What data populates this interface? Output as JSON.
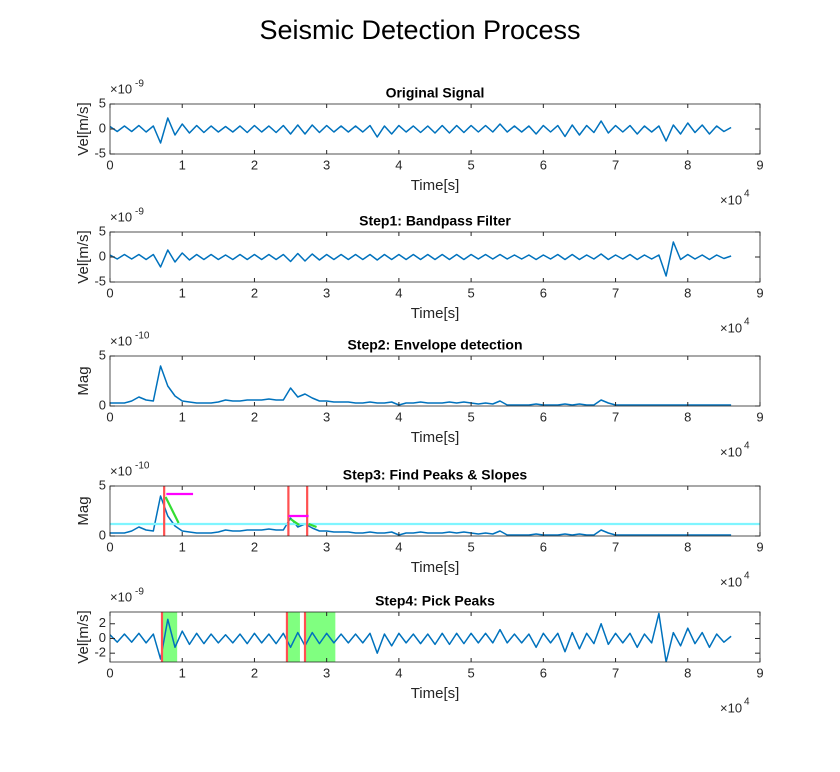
{
  "title": "Seismic Detection Process",
  "chart_data": [
    {
      "type": "line",
      "title": "Original Signal",
      "xlabel": "Time[s]",
      "ylabel": "Vel[m/s]",
      "x_exponent": {
        "base": "×10",
        "power": "4"
      },
      "y_exponent": {
        "base": "×10",
        "power": "-9"
      },
      "xlim": [
        0,
        9
      ],
      "xticks": [
        0,
        1,
        2,
        3,
        4,
        5,
        6,
        7,
        8,
        9
      ],
      "ylim": [
        -5,
        5
      ],
      "yticks": [
        -5,
        0,
        5
      ],
      "x": [
        0,
        0.1,
        0.2,
        0.3,
        0.4,
        0.5,
        0.6,
        0.7,
        0.8,
        0.9,
        1,
        1.1,
        1.2,
        1.3,
        1.4,
        1.5,
        1.6,
        1.7,
        1.8,
        1.9,
        2,
        2.1,
        2.2,
        2.3,
        2.4,
        2.5,
        2.6,
        2.7,
        2.8,
        2.9,
        3,
        3.1,
        3.2,
        3.3,
        3.4,
        3.5,
        3.6,
        3.7,
        3.8,
        3.9,
        4,
        4.1,
        4.2,
        4.3,
        4.4,
        4.5,
        4.6,
        4.7,
        4.8,
        4.9,
        5,
        5.1,
        5.2,
        5.3,
        5.4,
        5.5,
        5.6,
        5.7,
        5.8,
        5.9,
        6,
        6.1,
        6.2,
        6.3,
        6.4,
        6.5,
        6.6,
        6.7,
        6.8,
        6.9,
        7,
        7.1,
        7.2,
        7.3,
        7.4,
        7.5,
        7.6,
        7.7,
        7.8,
        7.9,
        8,
        8.1,
        8.2,
        8.3,
        8.4,
        8.5,
        8.6
      ],
      "series": [
        {
          "color": "#0072bd",
          "values": [
            0.5,
            -0.5,
            0.6,
            -0.5,
            0.7,
            -0.6,
            0.6,
            -2.8,
            2.2,
            -1.2,
            1.0,
            -0.8,
            0.7,
            -0.7,
            0.6,
            -0.6,
            0.5,
            -0.6,
            0.6,
            -0.7,
            0.7,
            -0.6,
            0.6,
            -0.7,
            0.7,
            -1.0,
            0.8,
            -1.0,
            0.8,
            -0.7,
            0.7,
            -0.6,
            0.6,
            -0.6,
            0.6,
            -0.6,
            0.7,
            -1.6,
            0.6,
            -1.0,
            0.7,
            -0.6,
            0.6,
            -0.7,
            0.6,
            -0.8,
            0.7,
            -0.8,
            0.7,
            -0.7,
            0.7,
            -0.6,
            0.7,
            -0.6,
            1.0,
            -0.6,
            0.6,
            -0.6,
            0.6,
            -1.0,
            0.7,
            -0.6,
            0.7,
            -1.5,
            0.8,
            -1.2,
            0.7,
            -0.7,
            1.6,
            -0.8,
            0.7,
            -0.6,
            0.7,
            -1.0,
            0.6,
            -0.6,
            0.6,
            -2.4,
            0.8,
            -1.0,
            1.2,
            -0.7,
            0.8,
            -1.0,
            0.6,
            -0.5,
            0.3
          ]
        }
      ]
    },
    {
      "type": "line",
      "title": "Step1: Bandpass Filter",
      "xlabel": "Time[s]",
      "ylabel": "Vel[m/s]",
      "x_exponent": {
        "base": "×10",
        "power": "4"
      },
      "y_exponent": {
        "base": "×10",
        "power": "-9"
      },
      "xlim": [
        0,
        9
      ],
      "xticks": [
        0,
        1,
        2,
        3,
        4,
        5,
        6,
        7,
        8,
        9
      ],
      "ylim": [
        -5,
        5
      ],
      "yticks": [
        -5,
        0,
        5
      ],
      "x": [
        0,
        0.1,
        0.2,
        0.3,
        0.4,
        0.5,
        0.6,
        0.7,
        0.8,
        0.9,
        1,
        1.1,
        1.2,
        1.3,
        1.4,
        1.5,
        1.6,
        1.7,
        1.8,
        1.9,
        2,
        2.1,
        2.2,
        2.3,
        2.4,
        2.5,
        2.6,
        2.7,
        2.8,
        2.9,
        3,
        3.1,
        3.2,
        3.3,
        3.4,
        3.5,
        3.6,
        3.7,
        3.8,
        3.9,
        4,
        4.1,
        4.2,
        4.3,
        4.4,
        4.5,
        4.6,
        4.7,
        4.8,
        4.9,
        5,
        5.1,
        5.2,
        5.3,
        5.4,
        5.5,
        5.6,
        5.7,
        5.8,
        5.9,
        6,
        6.1,
        6.2,
        6.3,
        6.4,
        6.5,
        6.6,
        6.7,
        6.8,
        6.9,
        7,
        7.1,
        7.2,
        7.3,
        7.4,
        7.5,
        7.6,
        7.7,
        7.8,
        7.9,
        8,
        8.1,
        8.2,
        8.3,
        8.4,
        8.5,
        8.6
      ],
      "series": [
        {
          "color": "#0072bd",
          "values": [
            0.4,
            -0.4,
            0.5,
            -0.4,
            0.5,
            -0.5,
            0.5,
            -2.0,
            1.4,
            -1.0,
            0.8,
            -0.6,
            0.5,
            -0.5,
            0.5,
            -0.5,
            0.4,
            -0.5,
            0.5,
            -0.5,
            0.5,
            -0.5,
            0.5,
            -0.5,
            0.5,
            -0.9,
            0.7,
            -0.8,
            0.6,
            -0.6,
            0.5,
            -0.5,
            0.5,
            -0.5,
            0.5,
            -0.5,
            0.5,
            -0.6,
            0.5,
            -0.5,
            0.5,
            -0.5,
            0.5,
            -0.5,
            0.5,
            -0.5,
            0.5,
            -0.5,
            0.5,
            -0.5,
            0.5,
            -0.4,
            0.5,
            -0.4,
            0.5,
            -0.4,
            0.4,
            -0.4,
            0.4,
            -0.5,
            0.4,
            -0.4,
            0.5,
            -0.5,
            0.5,
            -0.5,
            0.4,
            -0.4,
            0.6,
            -0.5,
            0.4,
            -0.4,
            0.5,
            -0.5,
            0.4,
            -0.4,
            0.4,
            -3.8,
            3.0,
            -0.5,
            0.5,
            -0.4,
            0.4,
            -0.5,
            0.4,
            -0.3,
            0.2
          ]
        }
      ]
    },
    {
      "type": "line",
      "title": "Step2: Envelope detection",
      "xlabel": "Time[s]",
      "ylabel": "Mag",
      "x_exponent": {
        "base": "×10",
        "power": "4"
      },
      "y_exponent": {
        "base": "×10",
        "power": "-10"
      },
      "xlim": [
        0,
        9
      ],
      "xticks": [
        0,
        1,
        2,
        3,
        4,
        5,
        6,
        7,
        8,
        9
      ],
      "ylim": [
        0,
        5
      ],
      "yticks": [
        0,
        5
      ],
      "x": [
        0,
        0.1,
        0.2,
        0.3,
        0.4,
        0.5,
        0.6,
        0.7,
        0.8,
        0.9,
        1,
        1.1,
        1.2,
        1.3,
        1.4,
        1.5,
        1.6,
        1.7,
        1.8,
        1.9,
        2,
        2.1,
        2.2,
        2.3,
        2.4,
        2.5,
        2.6,
        2.7,
        2.8,
        2.9,
        3,
        3.1,
        3.2,
        3.3,
        3.4,
        3.5,
        3.6,
        3.7,
        3.8,
        3.9,
        4,
        4.1,
        4.2,
        4.3,
        4.4,
        4.5,
        4.6,
        4.7,
        4.8,
        4.9,
        5,
        5.1,
        5.2,
        5.3,
        5.4,
        5.5,
        5.6,
        5.7,
        5.8,
        5.9,
        6,
        6.1,
        6.2,
        6.3,
        6.4,
        6.5,
        6.6,
        6.7,
        6.8,
        6.9,
        7,
        7.1,
        7.2,
        7.3,
        7.4,
        7.5,
        7.6,
        7.7,
        7.8,
        7.9,
        8,
        8.1,
        8.2,
        8.3,
        8.4,
        8.5,
        8.6
      ],
      "series": [
        {
          "color": "#0072bd",
          "values": [
            0.3,
            0.3,
            0.3,
            0.5,
            0.9,
            0.6,
            0.5,
            4.0,
            2.0,
            1.0,
            0.5,
            0.4,
            0.3,
            0.3,
            0.3,
            0.4,
            0.6,
            0.5,
            0.5,
            0.6,
            0.6,
            0.6,
            0.7,
            0.6,
            0.6,
            1.8,
            0.9,
            1.2,
            0.8,
            0.5,
            0.5,
            0.4,
            0.4,
            0.4,
            0.3,
            0.3,
            0.4,
            0.3,
            0.3,
            0.4,
            0.1,
            0.3,
            0.3,
            0.4,
            0.3,
            0.3,
            0.3,
            0.4,
            0.3,
            0.4,
            0.3,
            0.2,
            0.3,
            0.2,
            0.5,
            0.1,
            0.1,
            0.1,
            0.1,
            0.2,
            0.1,
            0.1,
            0.1,
            0.2,
            0.1,
            0.2,
            0.1,
            0.1,
            0.6,
            0.3,
            0.1,
            0.1,
            0.1,
            0.1,
            0.1,
            0.1,
            0.1,
            0.1,
            0.1,
            0.1,
            0.1,
            0.1,
            0.1,
            0.1,
            0.1,
            0.1,
            0.1
          ]
        }
      ]
    },
    {
      "type": "line",
      "title": "Step3: Find Peaks & Slopes",
      "xlabel": "Time[s]",
      "ylabel": "Mag",
      "x_exponent": {
        "base": "×10",
        "power": "4"
      },
      "y_exponent": {
        "base": "×10",
        "power": "-10"
      },
      "xlim": [
        0,
        9
      ],
      "xticks": [
        0,
        1,
        2,
        3,
        4,
        5,
        6,
        7,
        8,
        9
      ],
      "ylim": [
        0,
        5
      ],
      "yticks": [
        0,
        5
      ],
      "series": [
        {
          "color": "#0072bd",
          "x": [
            0,
            0.1,
            0.2,
            0.3,
            0.4,
            0.5,
            0.6,
            0.7,
            0.8,
            0.9,
            1,
            1.1,
            1.2,
            1.3,
            1.4,
            1.5,
            1.6,
            1.7,
            1.8,
            1.9,
            2,
            2.1,
            2.2,
            2.3,
            2.4,
            2.5,
            2.6,
            2.7,
            2.8,
            2.9,
            3,
            3.1,
            3.2,
            3.3,
            3.4,
            3.5,
            3.6,
            3.7,
            3.8,
            3.9,
            4,
            4.1,
            4.2,
            4.3,
            4.4,
            4.5,
            4.6,
            4.7,
            4.8,
            4.9,
            5,
            5.1,
            5.2,
            5.3,
            5.4,
            5.5,
            5.6,
            5.7,
            5.8,
            5.9,
            6,
            6.1,
            6.2,
            6.3,
            6.4,
            6.5,
            6.6,
            6.7,
            6.8,
            6.9,
            7,
            7.1,
            7.2,
            7.3,
            7.4,
            7.5,
            7.6,
            7.7,
            7.8,
            7.9,
            8,
            8.1,
            8.2,
            8.3,
            8.4,
            8.5,
            8.6
          ],
          "values": [
            0.3,
            0.3,
            0.3,
            0.5,
            0.9,
            0.6,
            0.5,
            4.0,
            2.0,
            1.0,
            0.5,
            0.4,
            0.3,
            0.3,
            0.3,
            0.4,
            0.6,
            0.5,
            0.5,
            0.6,
            0.6,
            0.6,
            0.7,
            0.6,
            0.6,
            1.8,
            0.9,
            1.2,
            0.8,
            0.5,
            0.5,
            0.4,
            0.4,
            0.4,
            0.3,
            0.3,
            0.4,
            0.3,
            0.3,
            0.4,
            0.1,
            0.3,
            0.3,
            0.4,
            0.3,
            0.3,
            0.3,
            0.4,
            0.3,
            0.4,
            0.3,
            0.2,
            0.3,
            0.2,
            0.5,
            0.1,
            0.1,
            0.1,
            0.1,
            0.2,
            0.1,
            0.1,
            0.1,
            0.2,
            0.1,
            0.2,
            0.1,
            0.1,
            0.6,
            0.3,
            0.1,
            0.1,
            0.1,
            0.1,
            0.1,
            0.1,
            0.1,
            0.1,
            0.1,
            0.1,
            0.1,
            0.1,
            0.1,
            0.1,
            0.1,
            0.1,
            0.1
          ]
        },
        {
          "color": "#7ff5ff",
          "x": [
            0,
            9
          ],
          "values": [
            1.2,
            1.2
          ]
        },
        {
          "color": "#ff5050",
          "x": [
            0.75,
            0.75
          ],
          "values": [
            0,
            5
          ]
        },
        {
          "color": "#ff5050",
          "x": [
            2.47,
            2.47
          ],
          "values": [
            0,
            5
          ]
        },
        {
          "color": "#ff5050",
          "x": [
            2.73,
            2.73
          ],
          "values": [
            0,
            5
          ]
        },
        {
          "color": "#ff00ff",
          "x": [
            0.78,
            1.15
          ],
          "values": [
            4.2,
            4.2
          ]
        },
        {
          "color": "#ff00ff",
          "x": [
            2.47,
            2.75
          ],
          "values": [
            2.0,
            2.0
          ]
        },
        {
          "color": "#33dd33",
          "x": [
            0.77,
            0.95
          ],
          "values": [
            3.9,
            1.3
          ]
        },
        {
          "color": "#33dd33",
          "x": [
            2.5,
            2.62
          ],
          "values": [
            1.7,
            1.1
          ]
        },
        {
          "color": "#33dd33",
          "x": [
            2.75,
            2.86
          ],
          "values": [
            1.2,
            0.9
          ]
        }
      ]
    },
    {
      "type": "line",
      "title": "Step4: Pick Peaks",
      "xlabel": "Time[s]",
      "ylabel": "Vel[m/s]",
      "x_exponent": {
        "base": "×10",
        "power": "4"
      },
      "y_exponent": {
        "base": "×10",
        "power": "-9"
      },
      "xlim": [
        0,
        9
      ],
      "xticks": [
        0,
        1,
        2,
        3,
        4,
        5,
        6,
        7,
        8,
        9
      ],
      "ylim": [
        -3.2,
        3.6
      ],
      "yticks": [
        -2,
        0,
        2
      ],
      "regions": [
        [
          0.72,
          0.93
        ],
        [
          2.45,
          2.63
        ],
        [
          2.7,
          3.12
        ]
      ],
      "region_color": "#80ff80",
      "vlines": [
        0.72,
        2.45,
        2.7
      ],
      "vline_color": "#ff5050",
      "x": [
        0,
        0.1,
        0.2,
        0.3,
        0.4,
        0.5,
        0.6,
        0.7,
        0.8,
        0.9,
        1,
        1.1,
        1.2,
        1.3,
        1.4,
        1.5,
        1.6,
        1.7,
        1.8,
        1.9,
        2,
        2.1,
        2.2,
        2.3,
        2.4,
        2.5,
        2.6,
        2.7,
        2.8,
        2.9,
        3,
        3.1,
        3.2,
        3.3,
        3.4,
        3.5,
        3.6,
        3.7,
        3.8,
        3.9,
        4,
        4.1,
        4.2,
        4.3,
        4.4,
        4.5,
        4.6,
        4.7,
        4.8,
        4.9,
        5,
        5.1,
        5.2,
        5.3,
        5.4,
        5.5,
        5.6,
        5.7,
        5.8,
        5.9,
        6,
        6.1,
        6.2,
        6.3,
        6.4,
        6.5,
        6.6,
        6.7,
        6.8,
        6.9,
        7,
        7.1,
        7.2,
        7.3,
        7.4,
        7.5,
        7.6,
        7.7,
        7.8,
        7.9,
        8,
        8.1,
        8.2,
        8.3,
        8.4,
        8.5,
        8.6
      ],
      "series": [
        {
          "color": "#0072bd",
          "values": [
            0.5,
            -0.5,
            0.6,
            -0.5,
            0.7,
            -0.6,
            0.6,
            -2.8,
            2.6,
            -1.2,
            1.0,
            -0.8,
            0.7,
            -0.7,
            0.6,
            -0.6,
            0.5,
            -0.6,
            0.6,
            -0.7,
            0.7,
            -0.6,
            0.6,
            -0.7,
            0.7,
            -1.2,
            0.8,
            -1.0,
            0.8,
            -0.7,
            0.7,
            -0.6,
            0.6,
            -0.6,
            0.6,
            -0.6,
            0.7,
            -2.0,
            0.6,
            -1.0,
            0.7,
            -0.6,
            0.6,
            -0.7,
            0.6,
            -0.8,
            0.7,
            -0.8,
            0.7,
            -0.7,
            0.7,
            -0.6,
            0.7,
            -0.6,
            1.2,
            -0.6,
            0.6,
            -0.6,
            0.6,
            -1.2,
            0.7,
            -0.6,
            0.7,
            -1.8,
            0.8,
            -1.4,
            0.7,
            -0.7,
            2.0,
            -0.8,
            0.7,
            -0.6,
            0.7,
            -1.2,
            0.6,
            -0.6,
            3.4,
            -3.2,
            0.8,
            -1.0,
            1.4,
            -0.7,
            0.8,
            -1.2,
            0.6,
            -0.5,
            0.3
          ]
        }
      ]
    }
  ]
}
